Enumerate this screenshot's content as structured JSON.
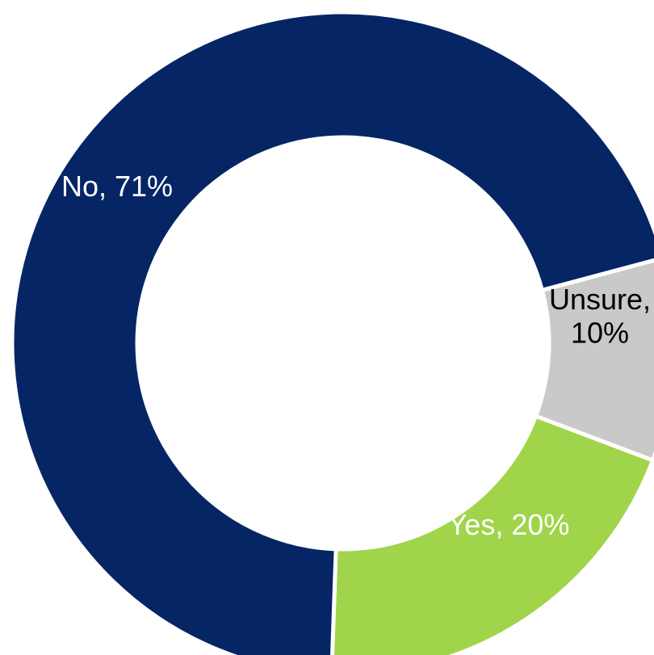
{
  "chart_data": {
    "type": "pie",
    "style": "donut",
    "title": "",
    "legend": "none",
    "slices": [
      {
        "label": "Yes",
        "value": 20,
        "display": "Yes, 20%",
        "color": "#a0d44a",
        "label_color": "#ffffff",
        "label_lines": [
          "Yes, 20%"
        ]
      },
      {
        "label": "No",
        "value": 71,
        "display": "No, 71%",
        "color": "#062565",
        "label_color": "#ffffff",
        "label_lines": [
          "No, 71%"
        ]
      },
      {
        "label": "Unsure",
        "value": 10,
        "display": "Unsure, 10%",
        "color": "#c9c9c9",
        "label_color": "#000000",
        "label_lines": [
          "Unsure,",
          "10%"
        ]
      }
    ]
  }
}
